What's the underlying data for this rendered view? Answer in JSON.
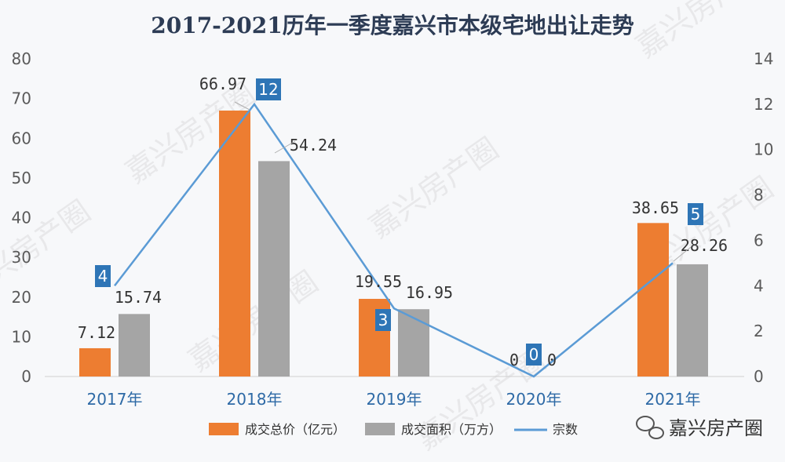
{
  "title": "2017-2021历年一季度嘉兴市本级宅地出让走势",
  "watermark": "嘉兴房产圈",
  "brand": "嘉兴房产圈",
  "colors": {
    "price": "#ed7d31",
    "area": "#a5a5a5",
    "count_line": "#5b9bd5",
    "count_box": "#2e75b6",
    "title": "#2d3c55",
    "category": "#2e6aa6"
  },
  "icons": {
    "brand_icon": "wechat-icon"
  },
  "chart_data": {
    "type": "bar",
    "title": "2017-2021历年一季度嘉兴市本级宅地出让走势",
    "categories": [
      "2017年",
      "2018年",
      "2019年",
      "2020年",
      "2021年"
    ],
    "ylim_left": [
      0,
      80
    ],
    "yticks_left": [
      0,
      10,
      20,
      30,
      40,
      50,
      60,
      70,
      80
    ],
    "ylim_right": [
      0,
      14
    ],
    "yticks_right": [
      0,
      2,
      4,
      6,
      8,
      10,
      12,
      14
    ],
    "grid": false,
    "legend_position": "bottom",
    "series": [
      {
        "name": "成交总价（亿元）",
        "type": "bar",
        "axis": "left",
        "values": [
          7.12,
          66.97,
          19.55,
          0,
          38.65
        ],
        "labels": [
          "7.12",
          "66.97",
          "19.55",
          "0",
          "38.65"
        ]
      },
      {
        "name": "成交面积（万方）",
        "type": "bar",
        "axis": "left",
        "values": [
          15.74,
          54.24,
          16.95,
          0,
          28.26
        ],
        "labels": [
          "15.74",
          "54.24",
          "16.95",
          "0",
          "28.26"
        ]
      },
      {
        "name": "宗数",
        "type": "line",
        "axis": "right",
        "values": [
          4,
          12,
          3,
          0,
          5
        ],
        "labels": [
          "4",
          "12",
          "3",
          "0",
          "5"
        ]
      }
    ]
  }
}
